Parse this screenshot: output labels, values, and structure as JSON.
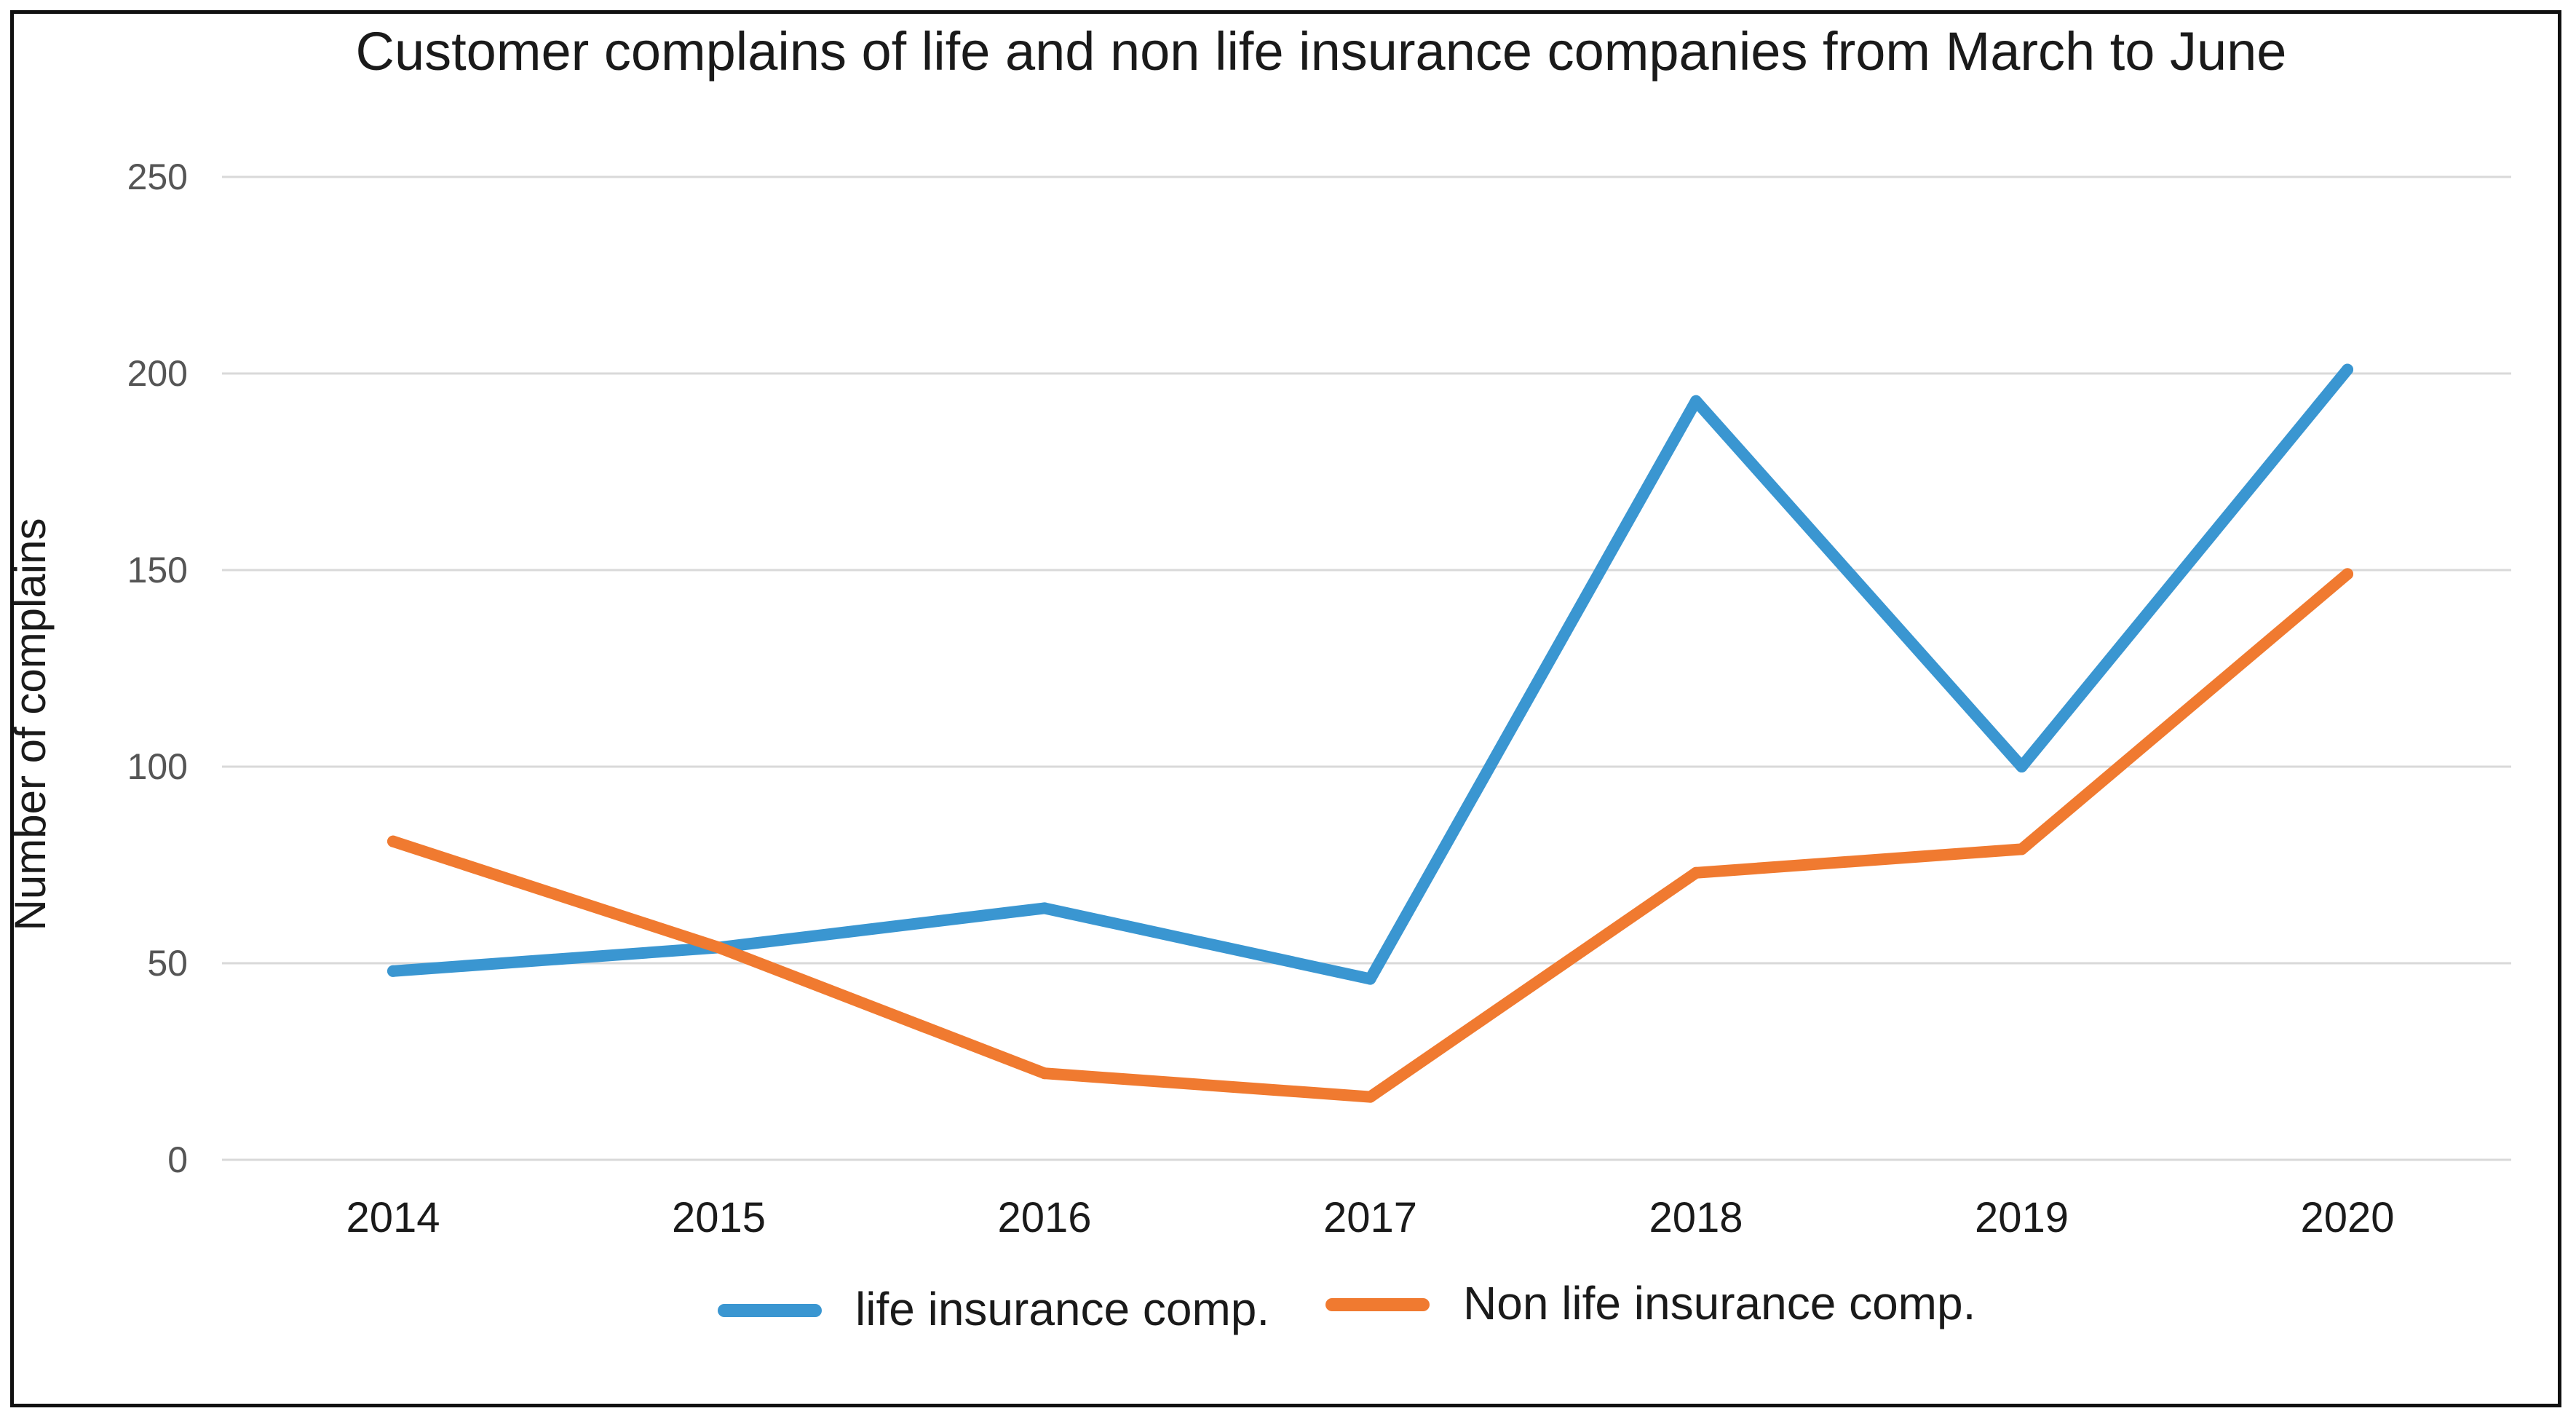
{
  "chart_data": {
    "type": "line",
    "title": "Customer complains of life and non life insurance companies from March to June",
    "xlabel": "",
    "ylabel": "Number of complains",
    "categories": [
      "2014",
      "2015",
      "2016",
      "2017",
      "2018",
      "2019",
      "2020"
    ],
    "ylim": [
      0,
      250
    ],
    "yticks": [
      0,
      50,
      100,
      150,
      200,
      250
    ],
    "grid": true,
    "legend": "bottom",
    "series": [
      {
        "name": "life insurance comp.",
        "color": "#3a96d1",
        "values": [
          48,
          54,
          64,
          46,
          193,
          100,
          201
        ]
      },
      {
        "name": "Non life insurance comp.",
        "color": "#f07a30",
        "values": [
          81,
          54,
          22,
          16,
          73,
          79,
          149
        ]
      }
    ]
  }
}
